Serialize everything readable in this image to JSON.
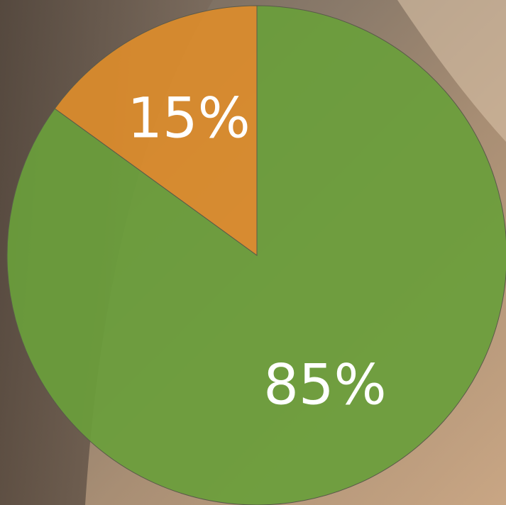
{
  "chart_data": {
    "type": "pie",
    "values": [
      85,
      15
    ],
    "value_labels": [
      "85%",
      "15%"
    ],
    "colors": [
      "#6a9e3b",
      "#db8c2c"
    ]
  }
}
